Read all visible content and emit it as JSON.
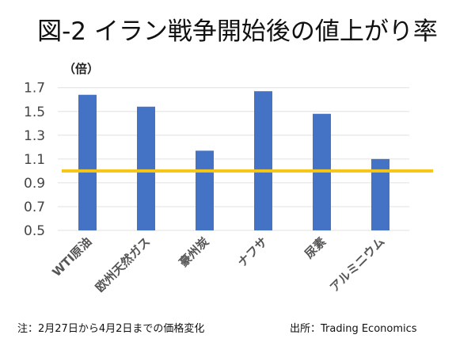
{
  "chart_data": {
    "type": "bar",
    "title": "図-2 イラン戦争開始後の値上がり率",
    "ylabel": "（倍）",
    "categories": [
      "WTI原油",
      "欧州天然ガス",
      "豪州炭",
      "ナフサ",
      "尿素",
      "アルミニウム"
    ],
    "values": [
      1.64,
      1.54,
      1.17,
      1.67,
      1.48,
      1.1
    ],
    "ylim": [
      0.5,
      1.7
    ],
    "yticks": [
      "1.7",
      "1.5",
      "1.3",
      "1.1",
      "0.9",
      "0.7",
      "0.5"
    ],
    "reference_line": 1.0,
    "grid": true,
    "colors": {
      "bar": "#4472C4",
      "reference_line": "#F5C518",
      "grid": "#E0E0E0"
    }
  },
  "footer": {
    "note": "注：2月27日から4月2日までの価格変化",
    "source": "出所：Trading Economics"
  }
}
